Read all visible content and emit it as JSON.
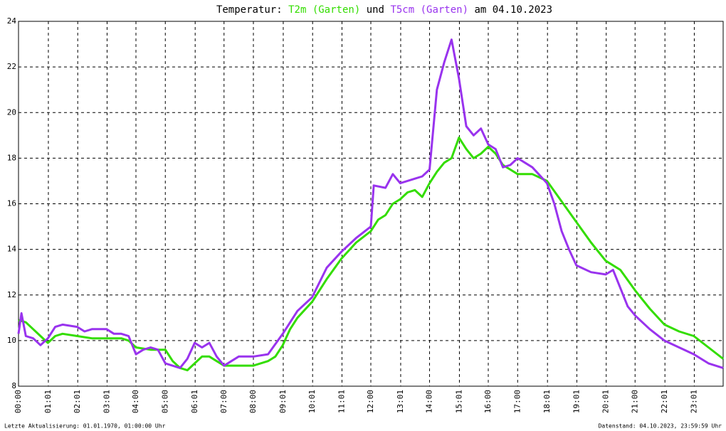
{
  "chart_data": {
    "type": "line",
    "title_prefix": "Temperatur:",
    "title_joiner": "und",
    "title_suffix": "am 04.10.2023",
    "footer_left": "Letzte Aktualisierung: 01.01.1970, 01:00:00 Uhr",
    "footer_right": "Datenstand: 04.10.2023, 23:59:59 Uhr",
    "xlim": [
      0,
      24
    ],
    "xticks": [
      {
        "value": 0,
        "label": "00:00"
      },
      {
        "value": 1.017,
        "label": "01:01"
      },
      {
        "value": 2.017,
        "label": "02:01"
      },
      {
        "value": 3.017,
        "label": "03:01"
      },
      {
        "value": 4,
        "label": "04:00"
      },
      {
        "value": 5,
        "label": "05:00"
      },
      {
        "value": 6.017,
        "label": "06:01"
      },
      {
        "value": 7,
        "label": "07:00"
      },
      {
        "value": 8,
        "label": "08:00"
      },
      {
        "value": 9.017,
        "label": "09:01"
      },
      {
        "value": 10.017,
        "label": "10:01"
      },
      {
        "value": 11.017,
        "label": "11:01"
      },
      {
        "value": 12,
        "label": "12:00"
      },
      {
        "value": 13.017,
        "label": "13:01"
      },
      {
        "value": 14,
        "label": "14:00"
      },
      {
        "value": 15.017,
        "label": "15:01"
      },
      {
        "value": 16,
        "label": "16:00"
      },
      {
        "value": 17,
        "label": "17:00"
      },
      {
        "value": 18.017,
        "label": "18:01"
      },
      {
        "value": 19.017,
        "label": "19:01"
      },
      {
        "value": 20.017,
        "label": "20:01"
      },
      {
        "value": 21,
        "label": "21:00"
      },
      {
        "value": 22.017,
        "label": "22:01"
      },
      {
        "value": 23.017,
        "label": "23:01"
      }
    ],
    "ylim": [
      8,
      24
    ],
    "yticks": [
      8,
      10,
      12,
      14,
      16,
      18,
      20,
      22,
      24
    ],
    "grid": true,
    "series": [
      {
        "name": "T2m (Garten)",
        "color": "#33dd00",
        "x": [
          0,
          0.25,
          0.5,
          0.75,
          1,
          1.25,
          1.5,
          2,
          2.5,
          3,
          3.5,
          3.75,
          4,
          4.5,
          5,
          5.25,
          5.5,
          5.75,
          6,
          6.25,
          6.5,
          6.75,
          7,
          7.5,
          8,
          8.5,
          8.75,
          9,
          9.25,
          9.5,
          10,
          10.5,
          11,
          11.5,
          12,
          12.25,
          12.5,
          12.75,
          13,
          13.25,
          13.5,
          13.75,
          14,
          14.25,
          14.5,
          14.75,
          15,
          15.25,
          15.5,
          15.75,
          16,
          16.25,
          16.5,
          16.75,
          17,
          17.5,
          18,
          18.5,
          19,
          19.5,
          20,
          20.5,
          21,
          21.5,
          22,
          22.5,
          23,
          23.5,
          24
        ],
        "values": [
          10.9,
          10.8,
          10.5,
          10.2,
          9.9,
          10.2,
          10.3,
          10.2,
          10.1,
          10.1,
          10.1,
          10.0,
          9.7,
          9.6,
          9.6,
          9.1,
          8.8,
          8.7,
          9.0,
          9.3,
          9.3,
          9.1,
          8.9,
          8.9,
          8.9,
          9.1,
          9.3,
          9.8,
          10.5,
          11.0,
          11.7,
          12.7,
          13.6,
          14.3,
          14.8,
          15.3,
          15.5,
          16.0,
          16.2,
          16.5,
          16.6,
          16.3,
          16.9,
          17.4,
          17.8,
          18.0,
          18.9,
          18.4,
          18.0,
          18.2,
          18.5,
          18.2,
          17.7,
          17.5,
          17.3,
          17.3,
          17.0,
          16.1,
          15.2,
          14.3,
          13.5,
          13.1,
          12.2,
          11.4,
          10.7,
          10.4,
          10.2,
          9.7,
          9.2
        ]
      },
      {
        "name": "T5cm (Garten)",
        "color": "#9933ee",
        "x": [
          0,
          0.1,
          0.25,
          0.5,
          0.75,
          1,
          1.25,
          1.5,
          2,
          2.25,
          2.5,
          3,
          3.25,
          3.5,
          3.75,
          4,
          4.25,
          4.5,
          4.75,
          5,
          5.5,
          5.75,
          6,
          6.25,
          6.5,
          6.75,
          7,
          7.25,
          7.5,
          8,
          8.5,
          9,
          9.5,
          10,
          10.5,
          11,
          11.5,
          12,
          12.1,
          12.5,
          12.75,
          13,
          13.5,
          13.75,
          14,
          14.25,
          14.5,
          14.75,
          15,
          15.25,
          15.5,
          15.75,
          16,
          16.25,
          16.5,
          16.75,
          17,
          17.25,
          17.5,
          18,
          18.25,
          18.5,
          18.75,
          19,
          19.5,
          20,
          20.25,
          20.5,
          20.75,
          21,
          21.5,
          22,
          22.5,
          23,
          23.5,
          24
        ],
        "values": [
          10.3,
          11.2,
          10.2,
          10.1,
          9.8,
          10.1,
          10.6,
          10.7,
          10.6,
          10.4,
          10.5,
          10.5,
          10.3,
          10.3,
          10.2,
          9.4,
          9.6,
          9.7,
          9.6,
          9.0,
          8.8,
          9.2,
          9.9,
          9.7,
          9.9,
          9.3,
          8.9,
          9.1,
          9.3,
          9.3,
          9.4,
          10.3,
          11.3,
          11.9,
          13.2,
          13.9,
          14.5,
          15.0,
          16.8,
          16.7,
          17.3,
          16.9,
          17.1,
          17.2,
          17.5,
          21.0,
          22.2,
          23.2,
          21.5,
          19.4,
          19.0,
          19.3,
          18.6,
          18.4,
          17.6,
          17.7,
          18.0,
          17.8,
          17.6,
          16.9,
          16.0,
          14.8,
          14.0,
          13.3,
          13.0,
          12.9,
          13.1,
          12.3,
          11.5,
          11.1,
          10.5,
          10.0,
          9.7,
          9.4,
          9.0,
          8.8
        ]
      }
    ]
  }
}
